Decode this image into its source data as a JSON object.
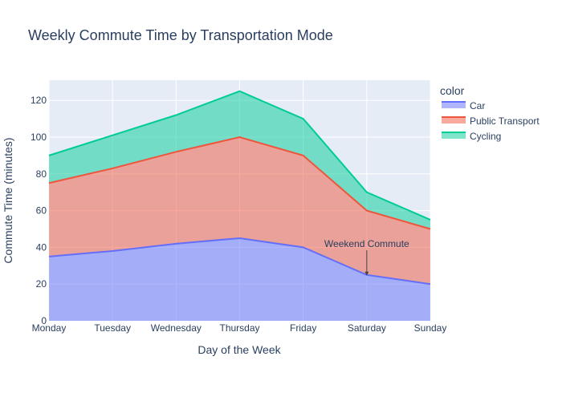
{
  "chart_data": {
    "type": "area",
    "title": "Weekly Commute Time by Transportation Mode",
    "xlabel": "Day of the Week",
    "ylabel": "Commute Time (minutes)",
    "categories": [
      "Monday",
      "Tuesday",
      "Wednesday",
      "Thursday",
      "Friday",
      "Saturday",
      "Sunday"
    ],
    "stacked": true,
    "ylim": [
      0,
      131
    ],
    "yticks": [
      0,
      20,
      40,
      60,
      80,
      100,
      120
    ],
    "grid": true,
    "legend": {
      "title": "color",
      "placement": "right"
    },
    "series": [
      {
        "name": "Car",
        "values": [
          35,
          38,
          42,
          45,
          40,
          25,
          20
        ],
        "color": "#636efa"
      },
      {
        "name": "Public Transport",
        "values": [
          40,
          45,
          50,
          55,
          50,
          35,
          30
        ],
        "color": "#ef553b"
      },
      {
        "name": "Cycling",
        "values": [
          15,
          18,
          20,
          25,
          20,
          10,
          5
        ],
        "color": "#00cc96"
      }
    ],
    "annotations": [
      {
        "text": "Weekend Commute",
        "x": "Saturday",
        "y": 25
      }
    ]
  }
}
